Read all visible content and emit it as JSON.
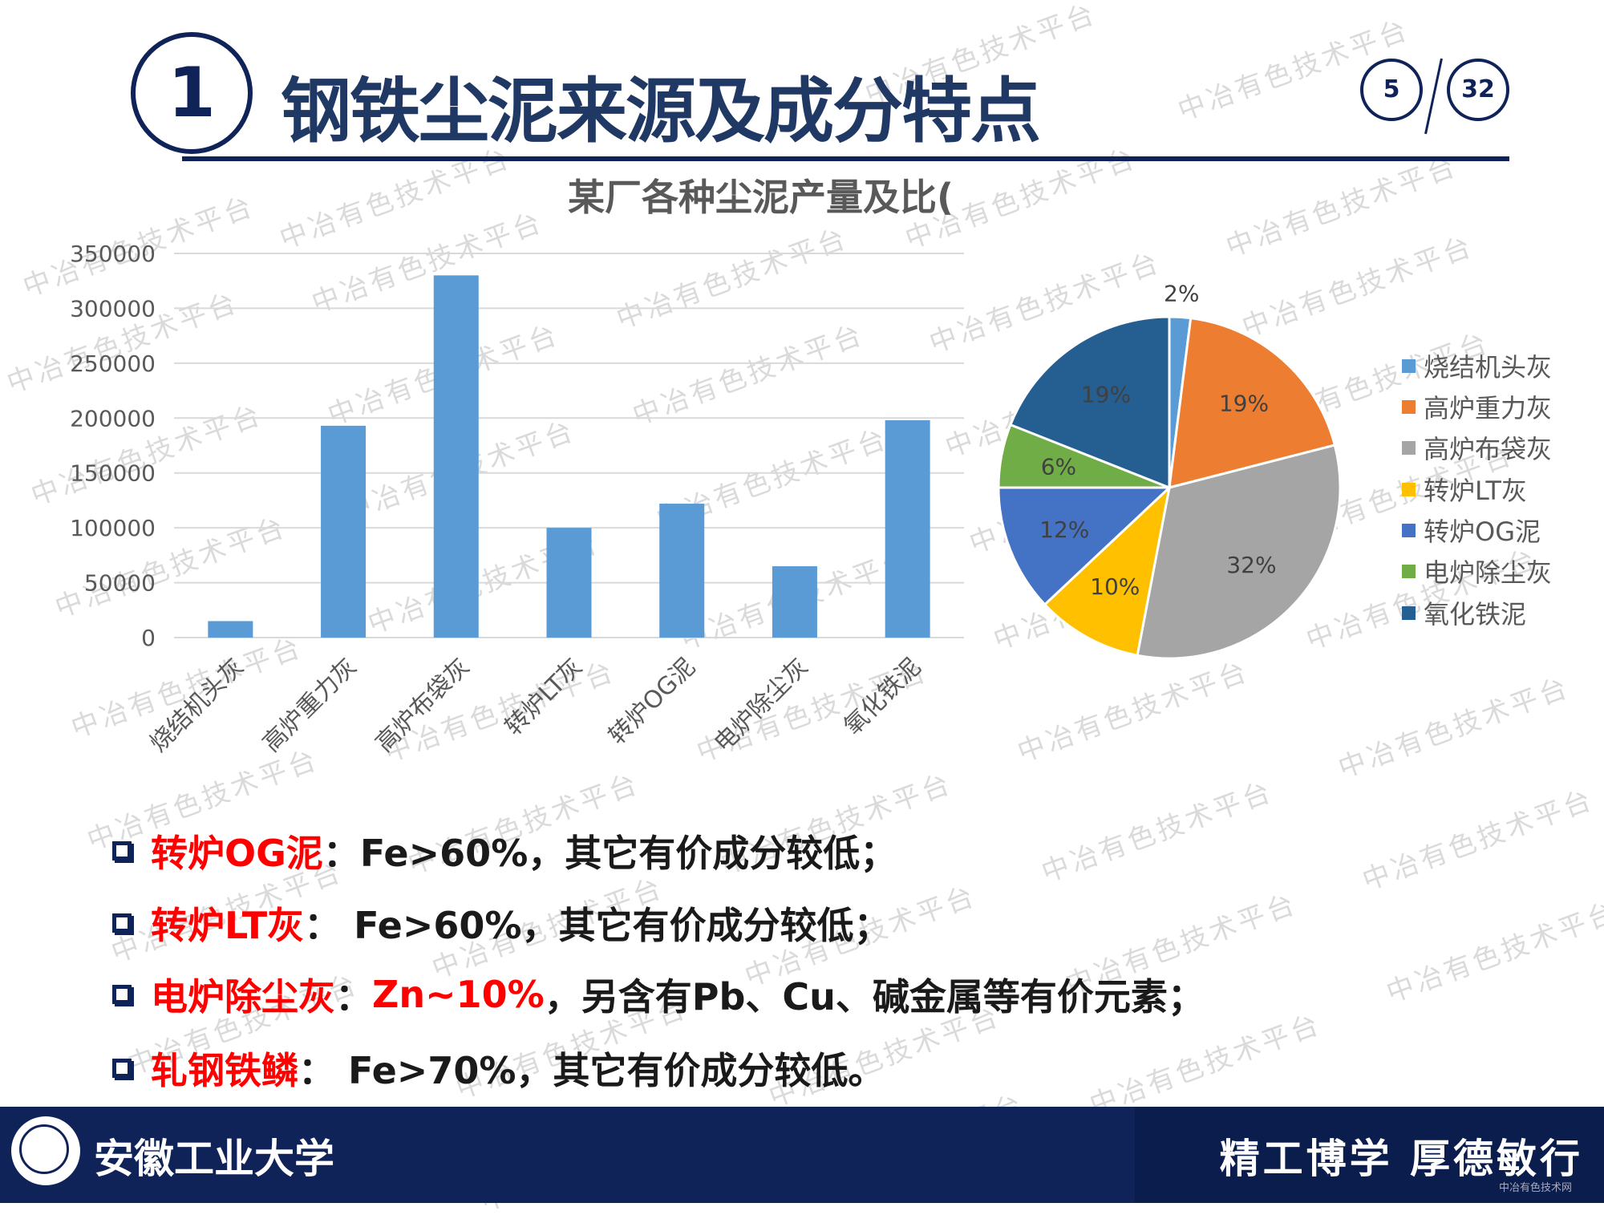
{
  "header": {
    "section_number": "1",
    "title": "钢铁尘泥来源及成分特点",
    "current_page": "5",
    "total_pages": "32"
  },
  "chart_data": [
    {
      "type": "bar",
      "title": "某厂各种尘泥产量及比(",
      "categories": [
        "烧结机头灰",
        "高炉重力灰",
        "高炉布袋灰",
        "转炉LT灰",
        "转炉OG泥",
        "电炉除尘灰",
        "氧化铁泥"
      ],
      "values": [
        15000,
        193000,
        330000,
        100000,
        122000,
        65000,
        198000
      ],
      "ylim": [
        0,
        350000
      ],
      "yticks": [
        "0",
        "50000",
        "100000",
        "150000",
        "200000",
        "250000",
        "300000",
        "350000"
      ],
      "grid": true,
      "color": "#5b9bd5"
    },
    {
      "type": "pie",
      "categories": [
        "烧结机头灰",
        "高炉重力灰",
        "高炉布袋灰",
        "转炉LT灰",
        "转炉OG泥",
        "电炉除尘灰",
        "氧化铁泥"
      ],
      "values": [
        2,
        19,
        32,
        10,
        12,
        6,
        19
      ],
      "labels": [
        "2%",
        "19%",
        "32%",
        "10%",
        "12%",
        "6%",
        "19%"
      ],
      "colors": [
        "#5b9bd5",
        "#ed7d31",
        "#a5a5a5",
        "#ffc000",
        "#4472c4",
        "#70ad47",
        "#255e91"
      ],
      "legend_position": "right"
    }
  ],
  "bullets": [
    {
      "highlight": "转炉OG泥",
      "text": "：Fe>60%，其它有价成分较低；"
    },
    {
      "highlight": "转炉LT灰",
      "text": "：  Fe>60%，其它有价成分较低；"
    },
    {
      "highlight": "电炉除尘灰",
      "text": "：  ",
      "highlight2": "Zn~10%",
      "text2": "，另含有Pb、Cu、碱金属等有价元素；"
    },
    {
      "highlight": "轧钢铁鳞",
      "text": "：  Fe>70%，其它有价成分较低。"
    }
  ],
  "footer": {
    "school": "安徽工业大学",
    "motto": "精工博学  厚德敏行",
    "site_mark": "中冶有色技术网"
  },
  "watermark": "中冶有色技术平台"
}
